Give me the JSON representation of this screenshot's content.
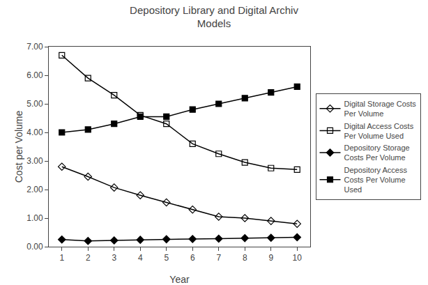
{
  "chart_data": {
    "type": "line",
    "title": "Depository Library and Digital Archiv\nModels",
    "x_label": "Year",
    "y_label": "Cost per Volume",
    "x": [
      1,
      2,
      3,
      4,
      5,
      6,
      7,
      8,
      9,
      10
    ],
    "series": [
      {
        "name": "Digital Storage Costs\nPer Volume",
        "color": "#000000",
        "marker": "diamond-open",
        "values": [
          2.8,
          2.45,
          2.07,
          1.8,
          1.55,
          1.3,
          1.05,
          1.0,
          0.9,
          0.8
        ]
      },
      {
        "name": "Digital Access Costs\nPer Volume Used",
        "color": "#000000",
        "marker": "square-open",
        "values": [
          6.7,
          5.9,
          5.3,
          4.6,
          4.3,
          3.6,
          3.25,
          2.95,
          2.75,
          2.7
        ]
      },
      {
        "name": "Depository Storage\nCosts Per Volume",
        "color": "#000000",
        "marker": "diamond",
        "values": [
          0.25,
          0.2,
          0.22,
          0.24,
          0.26,
          0.27,
          0.28,
          0.3,
          0.31,
          0.33
        ]
      },
      {
        "name": "Depository Access\nCosts Per Volume\nUsed",
        "color": "#000000",
        "marker": "square",
        "values": [
          4.0,
          4.1,
          4.3,
          4.55,
          4.55,
          4.8,
          5.0,
          5.2,
          5.4,
          5.6
        ]
      }
    ],
    "xlim": [
      0.5,
      10.5
    ],
    "xticks": [
      1,
      2,
      3,
      4,
      5,
      6,
      7,
      8,
      9,
      10
    ],
    "ylim": [
      0.0,
      7.0
    ],
    "yticks": [
      {
        "value": 0.0,
        "label": "0.00"
      },
      {
        "value": 1.0,
        "label": "1.00"
      },
      {
        "value": 2.0,
        "label": "2.00"
      },
      {
        "value": 3.0,
        "label": "3.00"
      },
      {
        "value": 4.0,
        "label": "4.00"
      },
      {
        "value": 5.0,
        "label": "5.00"
      },
      {
        "value": 6.0,
        "label": "6.00"
      },
      {
        "value": 7.0,
        "label": "7.00"
      }
    ],
    "grid": false,
    "legend": "right"
  }
}
